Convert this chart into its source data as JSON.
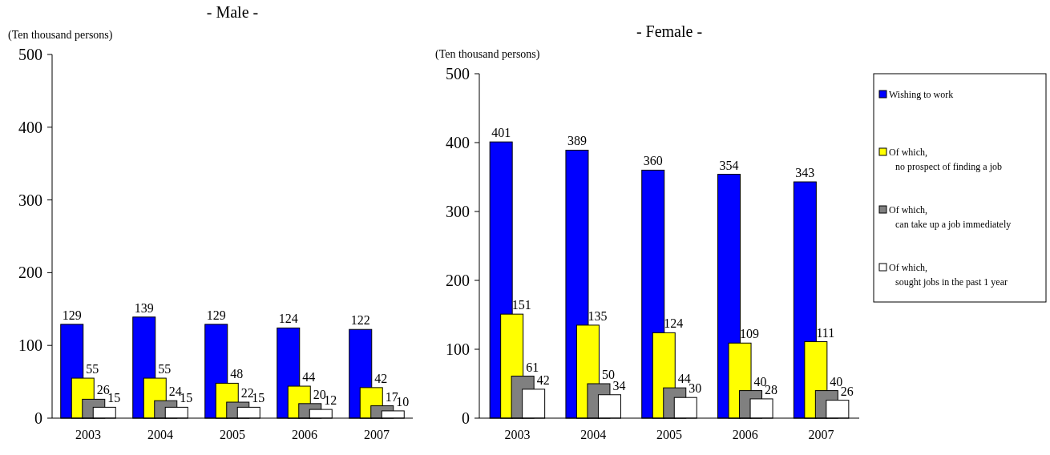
{
  "chart_data": [
    {
      "type": "bar",
      "title": "- Male -",
      "ylabel": "(Ten thousand persons)",
      "categories": [
        "2003",
        "2004",
        "2005",
        "2006",
        "2007"
      ],
      "ylim": [
        0,
        500
      ],
      "yticks": [
        0,
        100,
        200,
        300,
        400,
        500
      ],
      "grid": false,
      "legend": false,
      "data_labels": true,
      "series": [
        {
          "color": "#0000ff",
          "values": [
            129,
            139,
            129,
            124,
            122
          ]
        },
        {
          "color": "#ffff00",
          "values": [
            55,
            55,
            48,
            44,
            42
          ]
        },
        {
          "color": "#808080",
          "values": [
            26,
            24,
            22,
            20,
            17
          ]
        },
        {
          "color": "#ffffff",
          "values": [
            15,
            15,
            15,
            12,
            10
          ]
        }
      ]
    },
    {
      "type": "bar",
      "title": "- Female -",
      "ylabel": "(Ten thousand persons)",
      "categories": [
        "2003",
        "2004",
        "2005",
        "2006",
        "2007"
      ],
      "ylim": [
        0,
        500
      ],
      "yticks": [
        0,
        100,
        200,
        300,
        400,
        500
      ],
      "grid": false,
      "legend": "right",
      "data_labels": true,
      "series": [
        {
          "name": "Wishing to work",
          "color": "#0000ff",
          "values": [
            401,
            389,
            360,
            354,
            343
          ]
        },
        {
          "name": "Of which,\nno prospect of finding a job",
          "color": "#ffff00",
          "values": [
            151,
            135,
            124,
            109,
            111
          ]
        },
        {
          "name": "Of which,\ncan take up a job immediately",
          "color": "#808080",
          "values": [
            61,
            50,
            44,
            40,
            40
          ]
        },
        {
          "name": "Of which,\nsought jobs in the past 1 year",
          "color": "#ffffff",
          "values": [
            42,
            34,
            30,
            28,
            26
          ]
        }
      ]
    }
  ]
}
